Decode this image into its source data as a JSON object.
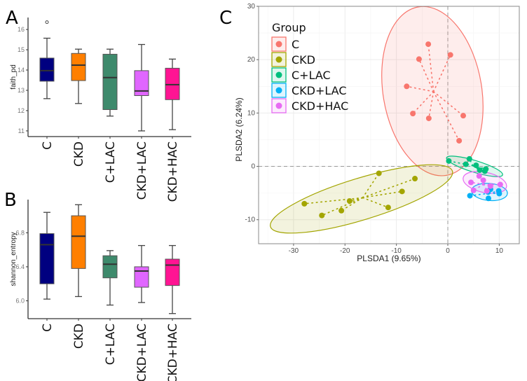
{
  "panels": {
    "a": "A",
    "b": "B",
    "c": "C"
  },
  "chart_data": [
    {
      "type": "box",
      "panel": "A",
      "ylabel": "faith_pd",
      "xlabel": "",
      "categories": [
        "C",
        "CKD",
        "C+LAC",
        "CKD+LAC",
        "CKD+HAC"
      ],
      "colors": [
        "#000080",
        "#FF7F00",
        "#3E8A6C",
        "#E066FF",
        "#FF1493"
      ],
      "yticks": [
        11,
        12,
        13,
        14,
        15,
        16
      ],
      "ylim": [
        10.72,
        16.59
      ],
      "boxes": [
        {
          "min": 12.59,
          "q1": 13.45,
          "median": 13.97,
          "q3": 14.59,
          "max": 15.57,
          "outliers": [
            16.36
          ]
        },
        {
          "min": 12.35,
          "q1": 13.48,
          "median": 14.24,
          "q3": 14.82,
          "max": 15.03,
          "outliers": []
        },
        {
          "min": 11.73,
          "q1": 12.05,
          "median": 13.63,
          "q3": 14.78,
          "max": 15.03,
          "outliers": []
        },
        {
          "min": 11.0,
          "q1": 12.74,
          "median": 12.97,
          "q3": 13.97,
          "max": 15.26,
          "outliers": []
        },
        {
          "min": 11.06,
          "q1": 12.54,
          "median": 13.28,
          "q3": 14.09,
          "max": 14.54,
          "outliers": []
        }
      ]
    },
    {
      "type": "box",
      "panel": "B",
      "ylabel": "shannon_entropy",
      "xlabel": "",
      "categories": [
        "C",
        "CKD",
        "C+LAC",
        "CKD+LAC",
        "CKD+HAC"
      ],
      "colors": [
        "#000080",
        "#FF7F00",
        "#3E8A6C",
        "#E066FF",
        "#FF1493"
      ],
      "yticks": [
        "6.0",
        "6.4",
        "6.8"
      ],
      "ylim": [
        5.79,
        7.19
      ],
      "boxes": [
        {
          "min": 6.02,
          "q1": 6.2,
          "median": 6.66,
          "q3": 6.79,
          "max": 7.04,
          "outliers": []
        },
        {
          "min": 6.05,
          "q1": 6.38,
          "median": 6.76,
          "q3": 7.0,
          "max": 7.13,
          "outliers": []
        },
        {
          "min": 5.95,
          "q1": 6.27,
          "median": 6.43,
          "q3": 6.53,
          "max": 6.59,
          "outliers": []
        },
        {
          "min": 5.98,
          "q1": 6.16,
          "median": 6.35,
          "q3": 6.4,
          "max": 6.65,
          "outliers": []
        },
        {
          "min": 5.85,
          "q1": 6.18,
          "median": 6.42,
          "q3": 6.49,
          "max": 6.65,
          "outliers": []
        }
      ]
    },
    {
      "type": "scatter",
      "panel": "C",
      "xlabel": "PLSDA1 (9.65%)",
      "ylabel": "PLSDA2 (6.24%)",
      "xlim": [
        -36.8,
        13.9
      ],
      "ylim": [
        -14.5,
        30.0
      ],
      "xticks": [
        -30,
        -20,
        -10,
        0,
        10
      ],
      "yticks": [
        -10,
        0,
        10,
        20,
        30
      ],
      "grid": true,
      "reference_lines": {
        "x": 0,
        "y": 0,
        "style": "dashed"
      },
      "legend": {
        "title": "Group",
        "position": "top-left"
      },
      "series": [
        {
          "name": "C",
          "color": "#F8766D",
          "points": [
            [
              -3.8,
              22.9
            ],
            [
              0.5,
              20.9
            ],
            [
              -5.6,
              20.1
            ],
            [
              -8.0,
              15.0
            ],
            [
              -6.8,
              9.9
            ],
            [
              -3.7,
              9.0
            ],
            [
              3.0,
              9.5
            ],
            [
              2.2,
              4.8
            ]
          ],
          "ellipse": {
            "cx": -3.0,
            "cy": 14.1,
            "rx": 9.6,
            "ry": 16.0,
            "angle": -9.4
          }
        },
        {
          "name": "CKD",
          "color": "#A3A500",
          "points": [
            [
              -27.9,
              -7.0
            ],
            [
              -24.5,
              -9.2
            ],
            [
              -20.7,
              -8.3
            ],
            [
              -19.1,
              -6.5
            ],
            [
              -13.4,
              -1.3
            ],
            [
              -11.6,
              -7.7
            ],
            [
              -8.9,
              -4.7
            ],
            [
              -6.4,
              -2.3
            ]
          ],
          "ellipse": {
            "cx": -16.8,
            "cy": -6.1,
            "rx": 18.5,
            "ry": 3.9,
            "angle": -17
          }
        },
        {
          "name": "C+LAC",
          "color": "#00BF7D",
          "points": [
            [
              0.2,
              1.0
            ],
            [
              3.5,
              0.4
            ],
            [
              4.2,
              1.4
            ],
            [
              5.5,
              0.2
            ],
            [
              6.2,
              -0.7
            ],
            [
              7.4,
              -0.5
            ],
            [
              7.2,
              -0.9
            ]
          ],
          "ellipse": {
            "cx": 5.2,
            "cy": 0.0,
            "rx": 5.7,
            "ry": 1.1,
            "angle": 17
          }
        },
        {
          "name": "CKD+LAC",
          "color": "#00B0F6",
          "points": [
            [
              4.3,
              -5.5
            ],
            [
              7.8,
              -4.8
            ],
            [
              7.9,
              -6.0
            ],
            [
              9.9,
              -4.6
            ],
            [
              10.0,
              -5.1
            ],
            [
              8.3,
              -4.3
            ]
          ],
          "ellipse": {
            "cx": 8.1,
            "cy": -4.8,
            "rx": 3.5,
            "ry": 1.6,
            "angle": 5
          }
        },
        {
          "name": "CKD+HAC",
          "color": "#E76BF3",
          "points": [
            [
              4.5,
              -3.0
            ],
            [
              6.1,
              -1.8
            ],
            [
              6.9,
              -2.6
            ],
            [
              5.0,
              -4.5
            ],
            [
              8.3,
              -3.7
            ],
            [
              10.2,
              -3.4
            ],
            [
              7.6,
              -4.6
            ]
          ],
          "ellipse": {
            "cx": 7.2,
            "cy": -3.0,
            "rx": 4.3,
            "ry": 1.9,
            "angle": 12
          }
        }
      ]
    }
  ]
}
